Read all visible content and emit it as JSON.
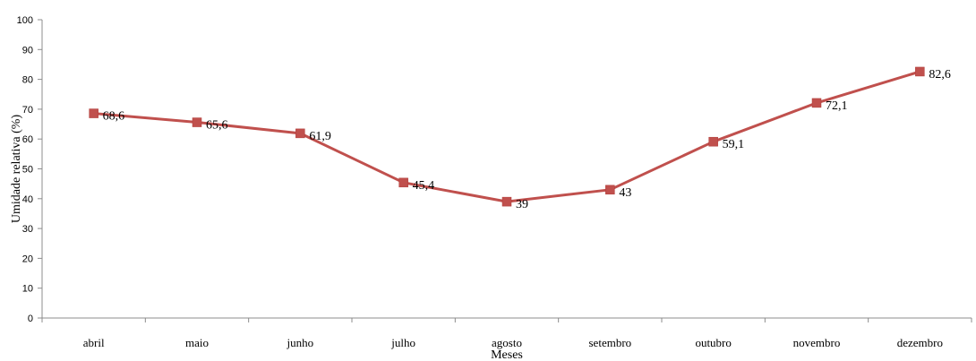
{
  "chart_data": {
    "type": "line",
    "xlabel": "Meses",
    "ylabel": "Umidade relativa (%)",
    "ylim": [
      0,
      100
    ],
    "yticks": [
      0,
      10,
      20,
      30,
      40,
      50,
      60,
      70,
      80,
      90,
      100
    ],
    "categories": [
      "abril",
      "maio",
      "junho",
      "julho",
      "agosto",
      "setembro",
      "outubro",
      "novembro",
      "dezembro"
    ],
    "values": [
      68.6,
      65.6,
      61.9,
      45.4,
      39,
      43,
      59.1,
      72.1,
      82.6
    ],
    "value_labels": [
      "68,6",
      "65,6",
      "61,9",
      "45,4",
      "39",
      "43",
      "59,1",
      "72,1",
      "82,6"
    ],
    "grid": false,
    "legend": "none",
    "series_color": "#c0504d",
    "marker": "square"
  }
}
